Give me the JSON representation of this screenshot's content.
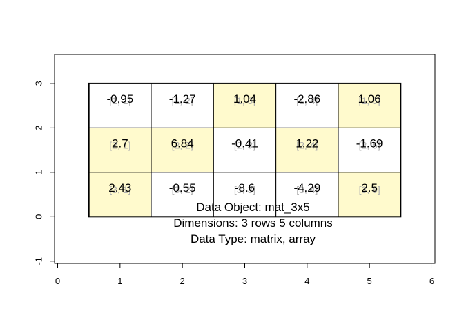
{
  "chart_data": {
    "type": "table",
    "title": "",
    "xlabel": "",
    "ylabel": "",
    "xlim": [
      -0.05,
      6.05
    ],
    "ylim": [
      -1.05,
      3.65
    ],
    "x_ticks": [
      0,
      1,
      2,
      3,
      4,
      5,
      6
    ],
    "y_ticks": [
      -1,
      0,
      1,
      2,
      3
    ],
    "grid": false,
    "highlight_color": "#FFFACD",
    "plain_color": "#FFFFFF",
    "cells": [
      [
        {
          "value": "-0.95",
          "index": "[1, 1]",
          "highlight": false
        },
        {
          "value": "-1.27",
          "index": "[1, 2]",
          "highlight": false
        },
        {
          "value": "1.04",
          "index": "[1, 3]",
          "highlight": true
        },
        {
          "value": "-2.86",
          "index": "[1, 4]",
          "highlight": false
        },
        {
          "value": "1.06",
          "index": "[1, 5]",
          "highlight": true
        }
      ],
      [
        {
          "value": "2.7",
          "index": "[2, 1]",
          "highlight": true
        },
        {
          "value": "6.84",
          "index": "[2, 2]",
          "highlight": true
        },
        {
          "value": "-0.41",
          "index": "[2, 3]",
          "highlight": false
        },
        {
          "value": "1.22",
          "index": "[2, 4]",
          "highlight": true
        },
        {
          "value": "-1.69",
          "index": "[2, 5]",
          "highlight": false
        }
      ],
      [
        {
          "value": "2.43",
          "index": "[3, 1]",
          "highlight": true
        },
        {
          "value": "-0.55",
          "index": "[3, 2]",
          "highlight": false
        },
        {
          "value": "-8.6",
          "index": "[3, 3]",
          "highlight": false
        },
        {
          "value": "-4.29",
          "index": "[3, 4]",
          "highlight": false
        },
        {
          "value": "2.5",
          "index": "[3, 5]",
          "highlight": true
        }
      ]
    ],
    "info": [
      "Data Object: mat_3x5",
      "Dimensions: 3 rows 5 columns",
      "Data Type: matrix, array"
    ]
  }
}
